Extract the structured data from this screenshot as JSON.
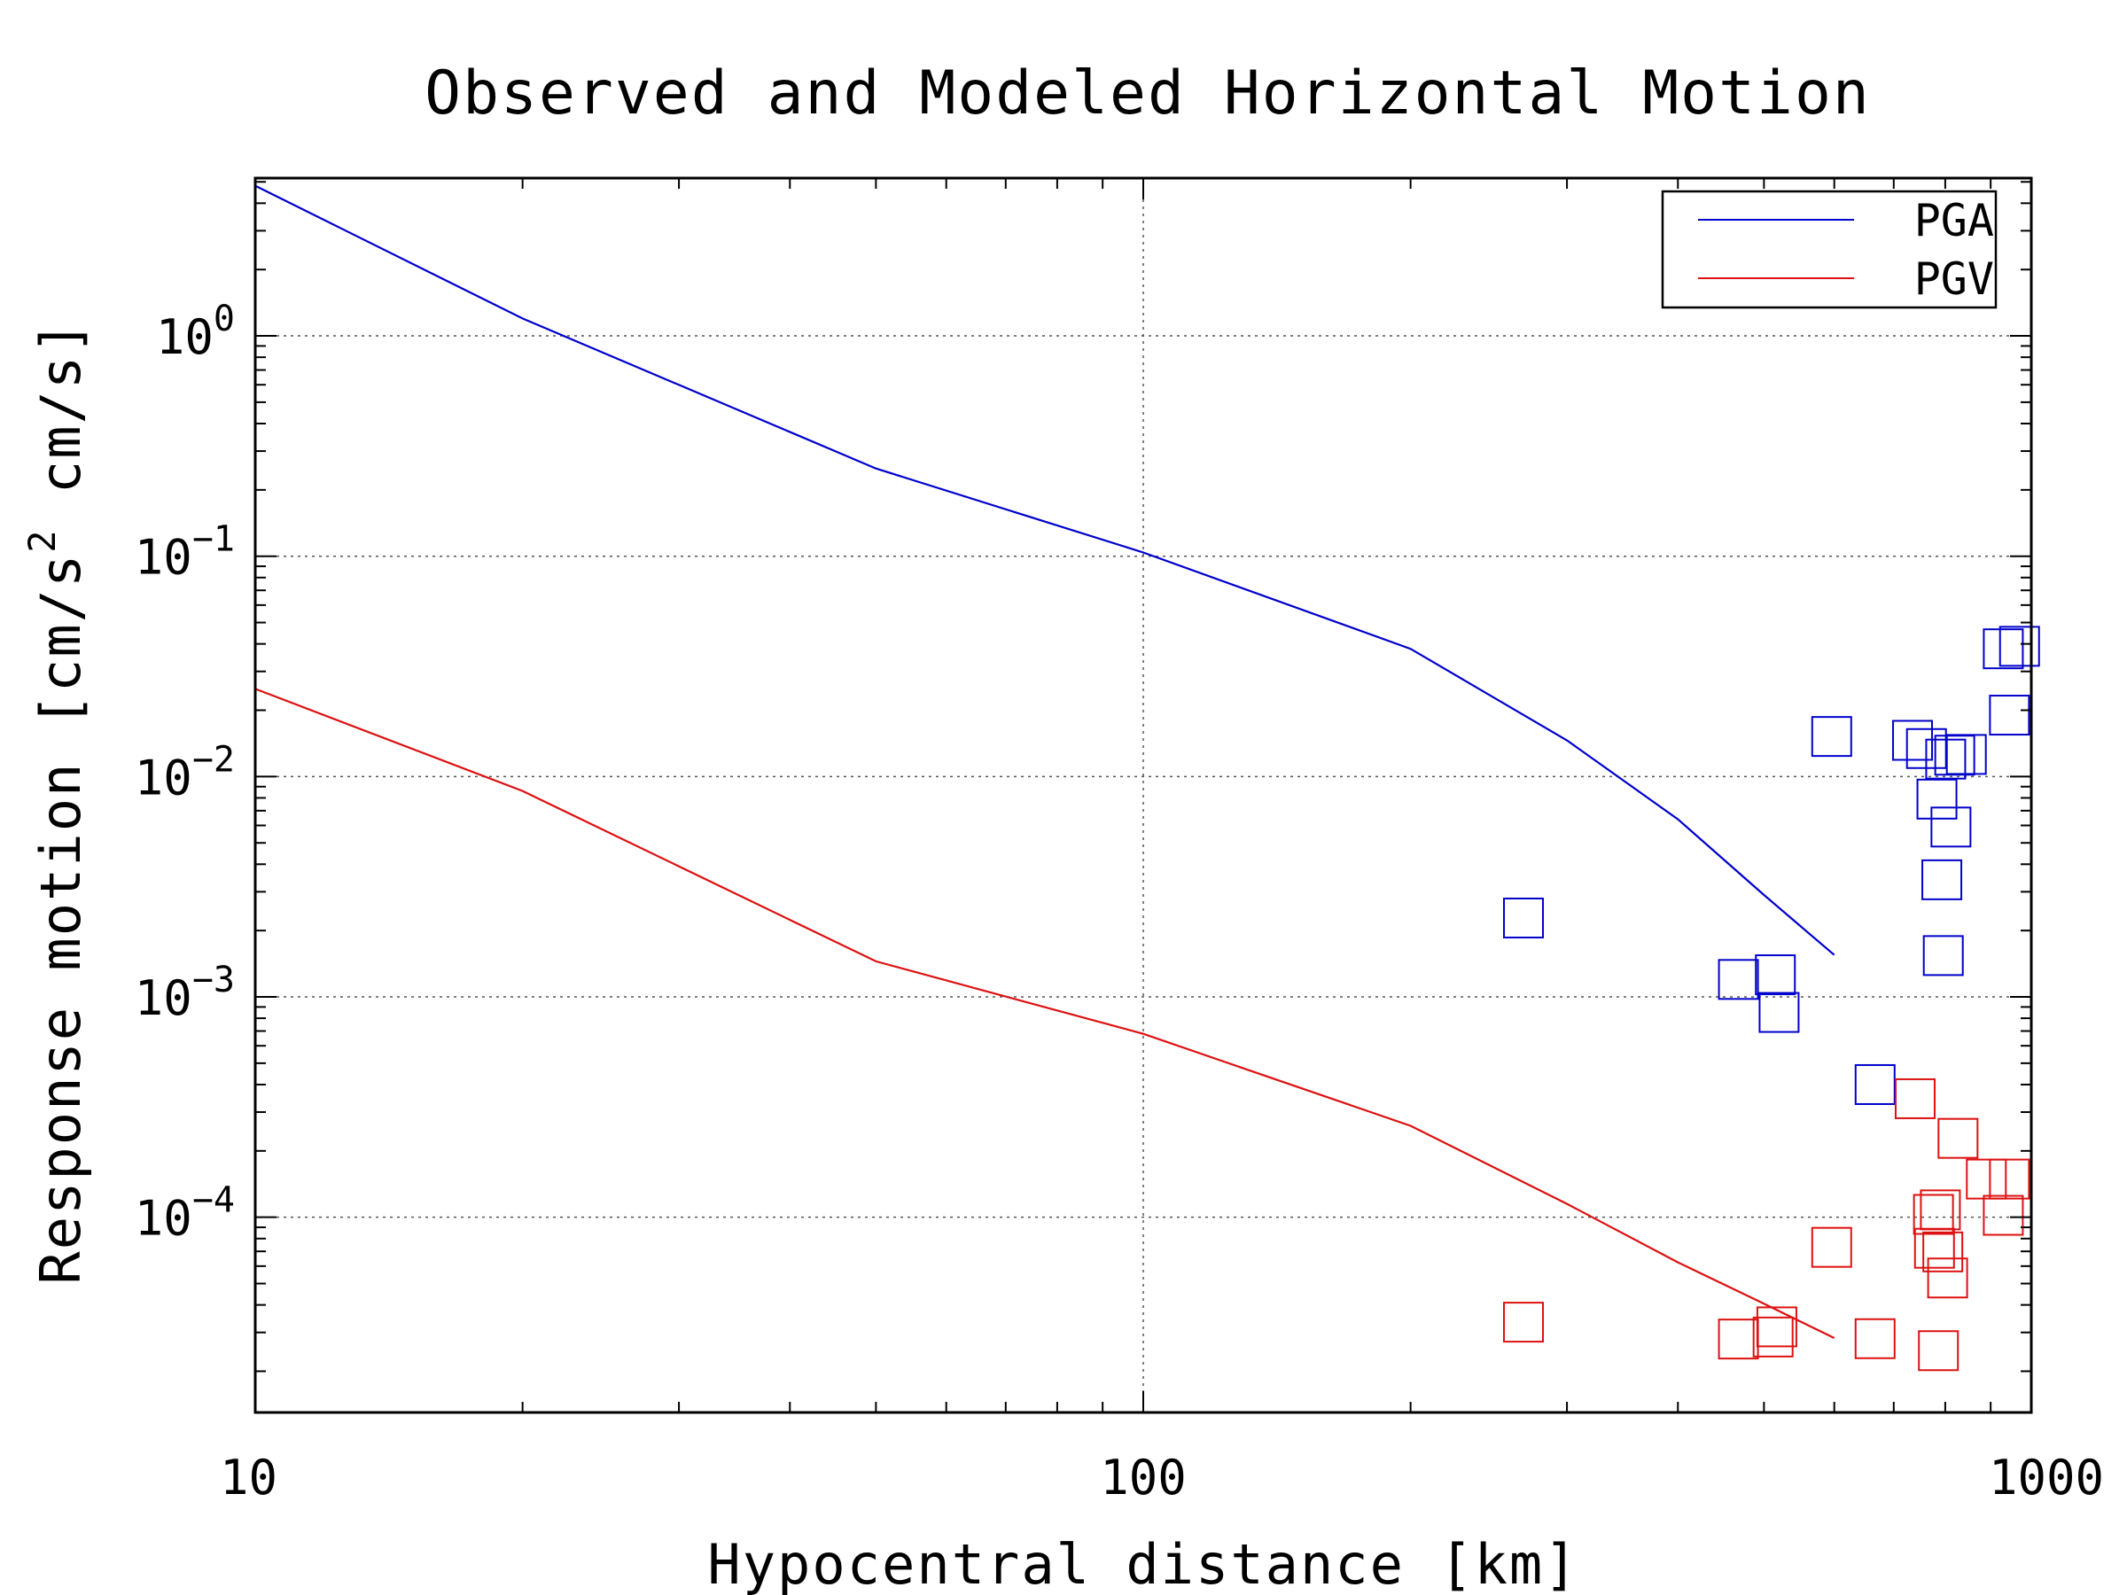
{
  "chart_data": {
    "type": "scatter",
    "title": "Observed and Modeled Horizontal Motion",
    "xlabel": "Hypocentral distance [km]",
    "ylabel": {
      "prefix": "Response motion [cm/s",
      "sup": "2",
      "suffix": " cm/s]"
    },
    "x_scale": "log",
    "y_scale": "log",
    "xlim": [
      10,
      1000
    ],
    "ylim": [
      1.3e-05,
      5.2
    ],
    "grid": true,
    "legend_position": "top-right",
    "x_ticks": [
      {
        "value": 10,
        "label": "10"
      },
      {
        "value": 100,
        "label": "100"
      },
      {
        "value": 1000,
        "label": "1000"
      }
    ],
    "y_ticks": [
      {
        "value": 1,
        "base": "10",
        "exp": "0"
      },
      {
        "value": 0.1,
        "base": "10",
        "exp": "−1"
      },
      {
        "value": 0.01,
        "base": "10",
        "exp": "−2"
      },
      {
        "value": 0.001,
        "base": "10",
        "exp": "−3"
      },
      {
        "value": 0.0001,
        "base": "10",
        "exp": "−4"
      }
    ],
    "series": [
      {
        "name": "PGA",
        "color": "#0000cc",
        "line": {
          "x": [
            10,
            20,
            50,
            100,
            200,
            300,
            400,
            500,
            600
          ],
          "y": [
            4.8,
            1.2,
            0.25,
            0.104,
            0.038,
            0.0146,
            0.0064,
            0.0029,
            0.00155
          ]
        },
        "points": {
          "x": [
            268,
            468,
            515,
            520,
            596,
            667,
            735,
            762,
            783,
            793,
            796,
            801,
            812,
            820,
            845,
            930,
            945,
            970
          ],
          "y": [
            0.00228,
            0.0012,
            0.00126,
            0.00085,
            0.0152,
            0.0004,
            0.0146,
            0.0134,
            0.0079,
            0.0034,
            0.00154,
            0.012,
            0.0059,
            0.0125,
            0.0126,
            0.038,
            0.019,
            0.039
          ]
        }
      },
      {
        "name": "PGV",
        "color": "#dd1111",
        "line": {
          "x": [
            10,
            20,
            50,
            100,
            200,
            300,
            400,
            500,
            600
          ],
          "y": [
            0.025,
            0.0086,
            0.00145,
            0.00068,
            0.00026,
            0.000115,
            6.24e-05,
            4.05e-05,
            2.83e-05
          ]
        },
        "points": {
          "x": [
            268,
            468,
            512,
            517,
            596,
            667,
            740,
            776,
            778,
            786,
            790,
            795,
            805,
            827,
            890,
            930,
            945
          ],
          "y": [
            3.34e-05,
            2.8e-05,
            2.86e-05,
            3.18e-05,
            7.3e-05,
            2.81e-05,
            0.000345,
            0.000103,
            7.23e-05,
            2.48e-05,
            0.000108,
            6.96e-05,
            5.3e-05,
            0.000228,
            0.000149,
            0.000102,
            0.000149
          ]
        }
      }
    ]
  }
}
